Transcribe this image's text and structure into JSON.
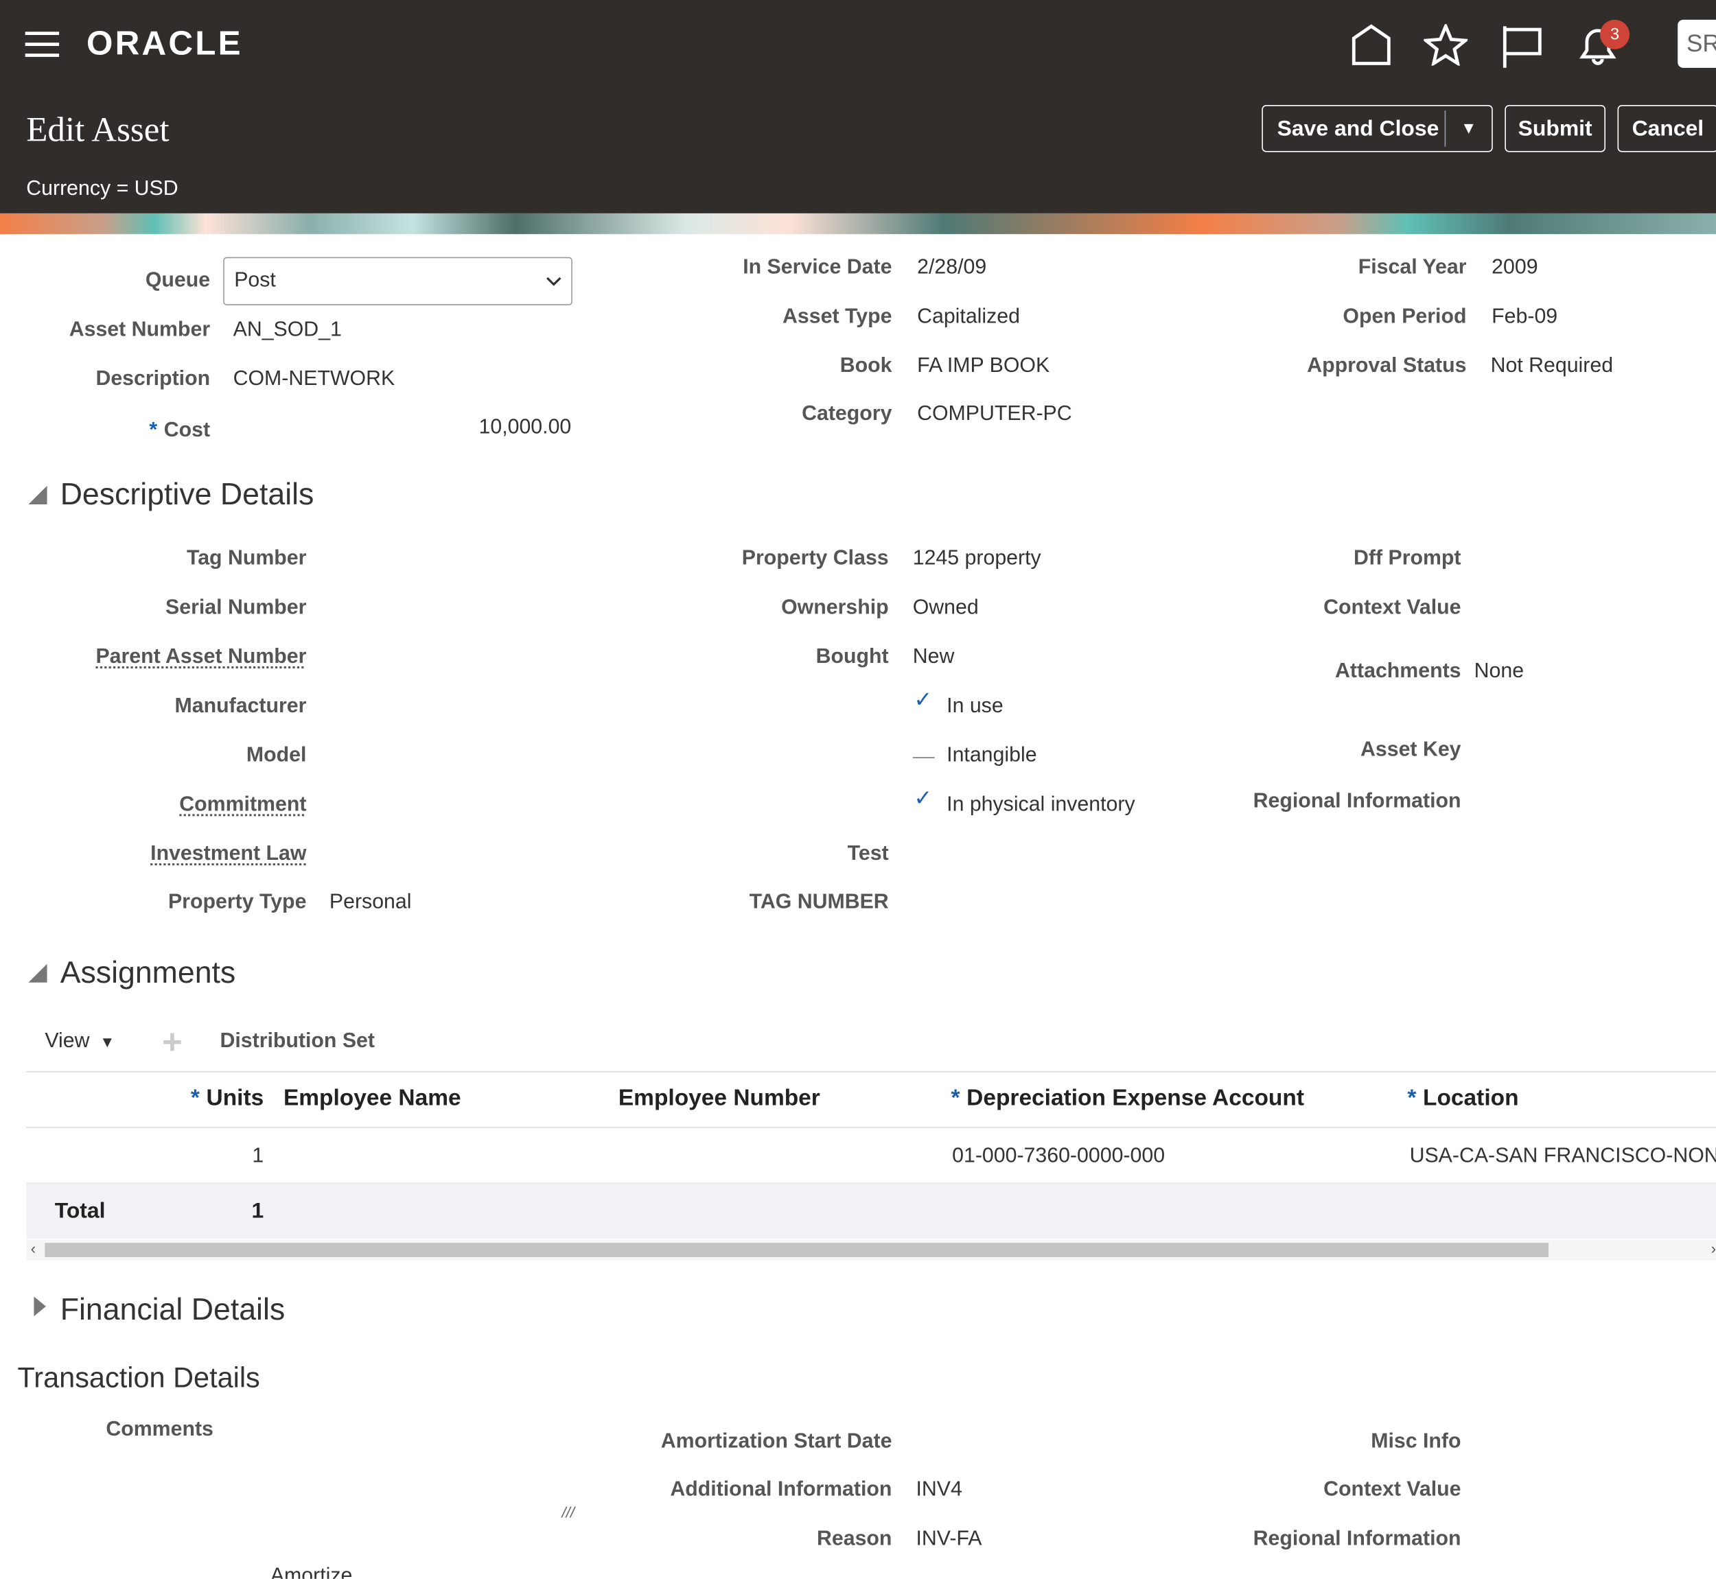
{
  "header": {
    "brand": "ORACLE",
    "title": "Edit Asset",
    "currency": "Currency = USD",
    "notification_count": "3",
    "user_initials": "SR",
    "buttons": {
      "save_close": "Save and Close",
      "submit": "Submit",
      "cancel": "Cancel"
    }
  },
  "summary": {
    "queue": {
      "label": "Queue",
      "value": "Post"
    },
    "asset_number": {
      "label": "Asset Number",
      "value": "AN_SOD_1"
    },
    "description": {
      "label": "Description",
      "value": "COM-NETWORK"
    },
    "cost": {
      "label": "Cost",
      "required": "*",
      "value": "10,000.00"
    },
    "in_service_date": {
      "label": "In Service Date",
      "value": "2/28/09"
    },
    "asset_type": {
      "label": "Asset Type",
      "value": "Capitalized"
    },
    "book": {
      "label": "Book",
      "value": "FA IMP BOOK"
    },
    "category": {
      "label": "Category",
      "value": "COMPUTER-PC"
    },
    "fiscal_year": {
      "label": "Fiscal Year",
      "value": "2009"
    },
    "open_period": {
      "label": "Open Period",
      "value": "Feb-09"
    },
    "approval_status": {
      "label": "Approval Status",
      "value": "Not Required"
    }
  },
  "descriptive": {
    "title": "Descriptive Details",
    "tag_number": "Tag Number",
    "serial_number": "Serial Number",
    "parent_asset_number": "Parent Asset Number",
    "manufacturer": "Manufacturer",
    "model": "Model",
    "commitment": "Commitment",
    "investment_law": "Investment Law",
    "property_type": {
      "label": "Property Type",
      "value": "Personal"
    },
    "property_class": {
      "label": "Property Class",
      "value": "1245 property"
    },
    "ownership": {
      "label": "Ownership",
      "value": "Owned"
    },
    "bought": {
      "label": "Bought",
      "value": "New"
    },
    "in_use": {
      "label": "In use",
      "checked": true
    },
    "intangible": {
      "label": "Intangible",
      "checked": false
    },
    "in_physical_inventory": {
      "label": "In physical inventory",
      "checked": true
    },
    "test": "Test",
    "tag_number_upper": "TAG NUMBER",
    "dff_prompt": "Dff Prompt",
    "context_value": "Context Value",
    "attachments": {
      "label": "Attachments",
      "value": "None"
    },
    "asset_key": "Asset Key",
    "regional_information": "Regional Information"
  },
  "assignments": {
    "title": "Assignments",
    "view": "View",
    "distribution_set": "Distribution Set",
    "columns": [
      "Units",
      "Employee Name",
      "Employee Number",
      "Depreciation Expense Account",
      "Location"
    ],
    "rows": [
      {
        "units": "1",
        "employee_name": "",
        "employee_number": "",
        "account": "01-000-7360-0000-000",
        "location": "USA-CA-SAN FRANCISCO-NON"
      }
    ],
    "total_label": "Total",
    "total_units": "1"
  },
  "financial": {
    "title": "Financial Details"
  },
  "transaction": {
    "title": "Transaction Details",
    "comments": "Comments",
    "amortize": "Amortize",
    "amortization_start_date": "Amortization Start Date",
    "additional_information": {
      "label": "Additional Information",
      "value": "INV4"
    },
    "reason": {
      "label": "Reason",
      "value": "INV-FA"
    },
    "misc_info": "Misc Info",
    "context_value": "Context Value",
    "regional_information": "Regional Information"
  }
}
